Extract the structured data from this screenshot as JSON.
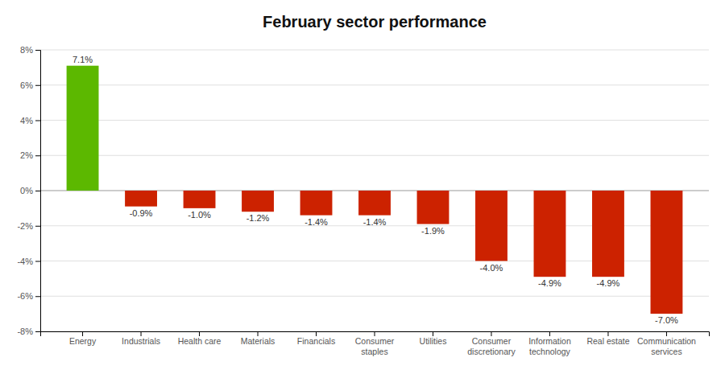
{
  "chart_data": {
    "type": "bar",
    "title": "February sector performance",
    "categories": [
      "Energy",
      "Industrials",
      "Health care",
      "Materials",
      "Financials",
      "Consumer\nstaples",
      "Utilities",
      "Consumer\ndiscretionary",
      "Information\ntechnology",
      "Real estate",
      "Communication\nservices"
    ],
    "values": [
      7.1,
      -0.9,
      -1.0,
      -1.2,
      -1.4,
      -1.4,
      -1.9,
      -4.0,
      -4.9,
      -4.9,
      -7.0
    ],
    "value_labels": [
      "7.1%",
      "-0.9%",
      "-1.0%",
      "-1.2%",
      "-1.4%",
      "-1.4%",
      "-1.9%",
      "-4.0%",
      "-4.9%",
      "-4.9%",
      "-7.0%"
    ],
    "colors": [
      "#5cb800",
      "#cc2200",
      "#cc2200",
      "#cc2200",
      "#cc2200",
      "#cc2200",
      "#cc2200",
      "#cc2200",
      "#cc2200",
      "#cc2200",
      "#cc2200"
    ],
    "ylim": [
      -8,
      8
    ],
    "yticks": [
      {
        "value": -8,
        "label": "-8%"
      },
      {
        "value": -6,
        "label": "-6%"
      },
      {
        "value": -4,
        "label": "-4%"
      },
      {
        "value": -2,
        "label": "-2%"
      },
      {
        "value": 0,
        "label": "0%"
      },
      {
        "value": 2,
        "label": "2%"
      },
      {
        "value": 4,
        "label": "4%"
      },
      {
        "value": 6,
        "label": "6%"
      },
      {
        "value": 8,
        "label": "8%"
      }
    ],
    "grid": true,
    "data_labels": true
  }
}
